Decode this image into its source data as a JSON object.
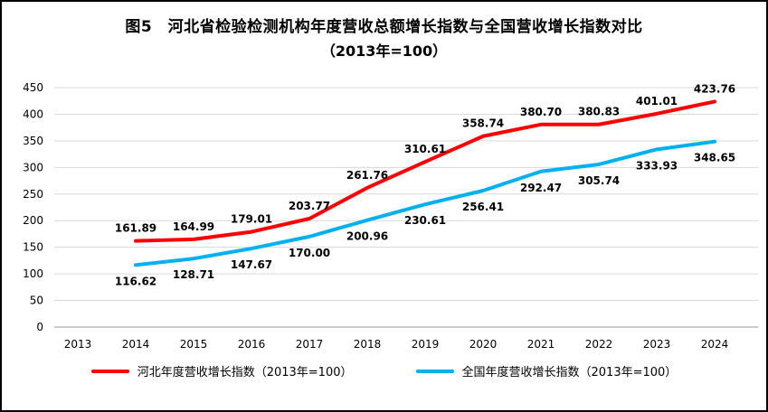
{
  "chart_data": {
    "type": "line",
    "title_line1": "图5　河北省检验检测机构年度营收总额增长指数与全国营收增长指数对比",
    "title_line2": "（2013年=100）",
    "x_categories": [
      "2013",
      "2014",
      "2015",
      "2016",
      "2017",
      "2018",
      "2019",
      "2020",
      "2021",
      "2022",
      "2023",
      "2024"
    ],
    "y_ticks": [
      0,
      50,
      100,
      150,
      200,
      250,
      300,
      350,
      400,
      450
    ],
    "ylim": [
      0,
      450
    ],
    "grid": true,
    "legend_position": "bottom",
    "series": [
      {
        "name": "河北年度营收增长指数（2013年=100）",
        "color": "#ff0000",
        "start_index": 1,
        "label_position": "above",
        "values": [
          161.89,
          164.99,
          179.01,
          203.77,
          261.76,
          310.61,
          358.74,
          380.7,
          380.83,
          401.01,
          423.76
        ],
        "labels": [
          "161.89",
          "164.99",
          "179.01",
          "203.77",
          "261.76",
          "310.61",
          "358.74",
          "380.70",
          "380.83",
          "401.01",
          "423.76"
        ]
      },
      {
        "name": "全国年度营收增长指数（2013年=100）",
        "color": "#00b0f0",
        "start_index": 1,
        "label_position": "below",
        "values": [
          116.62,
          128.71,
          147.67,
          170.0,
          200.96,
          230.61,
          256.41,
          292.47,
          305.74,
          333.93,
          348.65
        ],
        "labels": [
          "116.62",
          "128.71",
          "147.67",
          "170.00",
          "200.96",
          "230.61",
          "256.41",
          "292.47",
          "305.74",
          "333.93",
          "348.65"
        ]
      }
    ]
  }
}
